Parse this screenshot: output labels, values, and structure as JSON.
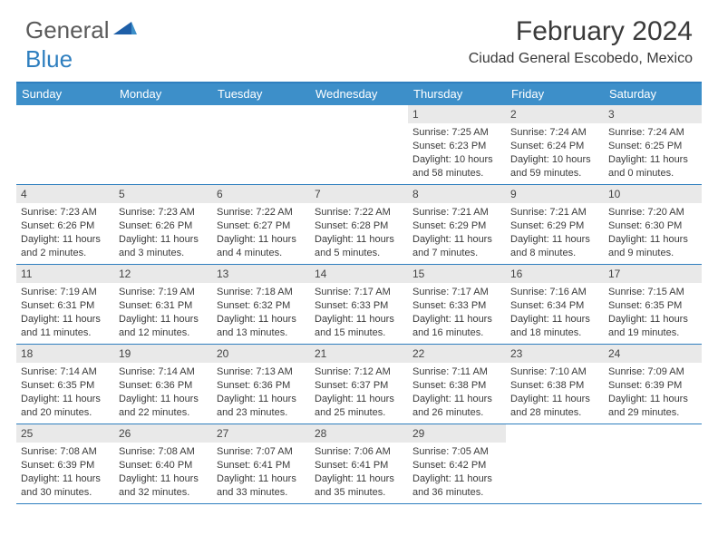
{
  "logo": {
    "text1": "General",
    "text2": "Blue"
  },
  "title": "February 2024",
  "location": "Ciudad General Escobedo, Mexico",
  "colors": {
    "header_bg": "#3d8fc9",
    "border": "#2f7fbf",
    "daynum_bg": "#e9e9e9",
    "text": "#3a3a3a"
  },
  "day_names": [
    "Sunday",
    "Monday",
    "Tuesday",
    "Wednesday",
    "Thursday",
    "Friday",
    "Saturday"
  ],
  "weeks": [
    [
      {
        "n": "",
        "sr": "",
        "ss": "",
        "dl": ""
      },
      {
        "n": "",
        "sr": "",
        "ss": "",
        "dl": ""
      },
      {
        "n": "",
        "sr": "",
        "ss": "",
        "dl": ""
      },
      {
        "n": "",
        "sr": "",
        "ss": "",
        "dl": ""
      },
      {
        "n": "1",
        "sr": "Sunrise: 7:25 AM",
        "ss": "Sunset: 6:23 PM",
        "dl": "Daylight: 10 hours and 58 minutes."
      },
      {
        "n": "2",
        "sr": "Sunrise: 7:24 AM",
        "ss": "Sunset: 6:24 PM",
        "dl": "Daylight: 10 hours and 59 minutes."
      },
      {
        "n": "3",
        "sr": "Sunrise: 7:24 AM",
        "ss": "Sunset: 6:25 PM",
        "dl": "Daylight: 11 hours and 0 minutes."
      }
    ],
    [
      {
        "n": "4",
        "sr": "Sunrise: 7:23 AM",
        "ss": "Sunset: 6:26 PM",
        "dl": "Daylight: 11 hours and 2 minutes."
      },
      {
        "n": "5",
        "sr": "Sunrise: 7:23 AM",
        "ss": "Sunset: 6:26 PM",
        "dl": "Daylight: 11 hours and 3 minutes."
      },
      {
        "n": "6",
        "sr": "Sunrise: 7:22 AM",
        "ss": "Sunset: 6:27 PM",
        "dl": "Daylight: 11 hours and 4 minutes."
      },
      {
        "n": "7",
        "sr": "Sunrise: 7:22 AM",
        "ss": "Sunset: 6:28 PM",
        "dl": "Daylight: 11 hours and 5 minutes."
      },
      {
        "n": "8",
        "sr": "Sunrise: 7:21 AM",
        "ss": "Sunset: 6:29 PM",
        "dl": "Daylight: 11 hours and 7 minutes."
      },
      {
        "n": "9",
        "sr": "Sunrise: 7:21 AM",
        "ss": "Sunset: 6:29 PM",
        "dl": "Daylight: 11 hours and 8 minutes."
      },
      {
        "n": "10",
        "sr": "Sunrise: 7:20 AM",
        "ss": "Sunset: 6:30 PM",
        "dl": "Daylight: 11 hours and 9 minutes."
      }
    ],
    [
      {
        "n": "11",
        "sr": "Sunrise: 7:19 AM",
        "ss": "Sunset: 6:31 PM",
        "dl": "Daylight: 11 hours and 11 minutes."
      },
      {
        "n": "12",
        "sr": "Sunrise: 7:19 AM",
        "ss": "Sunset: 6:31 PM",
        "dl": "Daylight: 11 hours and 12 minutes."
      },
      {
        "n": "13",
        "sr": "Sunrise: 7:18 AM",
        "ss": "Sunset: 6:32 PM",
        "dl": "Daylight: 11 hours and 13 minutes."
      },
      {
        "n": "14",
        "sr": "Sunrise: 7:17 AM",
        "ss": "Sunset: 6:33 PM",
        "dl": "Daylight: 11 hours and 15 minutes."
      },
      {
        "n": "15",
        "sr": "Sunrise: 7:17 AM",
        "ss": "Sunset: 6:33 PM",
        "dl": "Daylight: 11 hours and 16 minutes."
      },
      {
        "n": "16",
        "sr": "Sunrise: 7:16 AM",
        "ss": "Sunset: 6:34 PM",
        "dl": "Daylight: 11 hours and 18 minutes."
      },
      {
        "n": "17",
        "sr": "Sunrise: 7:15 AM",
        "ss": "Sunset: 6:35 PM",
        "dl": "Daylight: 11 hours and 19 minutes."
      }
    ],
    [
      {
        "n": "18",
        "sr": "Sunrise: 7:14 AM",
        "ss": "Sunset: 6:35 PM",
        "dl": "Daylight: 11 hours and 20 minutes."
      },
      {
        "n": "19",
        "sr": "Sunrise: 7:14 AM",
        "ss": "Sunset: 6:36 PM",
        "dl": "Daylight: 11 hours and 22 minutes."
      },
      {
        "n": "20",
        "sr": "Sunrise: 7:13 AM",
        "ss": "Sunset: 6:36 PM",
        "dl": "Daylight: 11 hours and 23 minutes."
      },
      {
        "n": "21",
        "sr": "Sunrise: 7:12 AM",
        "ss": "Sunset: 6:37 PM",
        "dl": "Daylight: 11 hours and 25 minutes."
      },
      {
        "n": "22",
        "sr": "Sunrise: 7:11 AM",
        "ss": "Sunset: 6:38 PM",
        "dl": "Daylight: 11 hours and 26 minutes."
      },
      {
        "n": "23",
        "sr": "Sunrise: 7:10 AM",
        "ss": "Sunset: 6:38 PM",
        "dl": "Daylight: 11 hours and 28 minutes."
      },
      {
        "n": "24",
        "sr": "Sunrise: 7:09 AM",
        "ss": "Sunset: 6:39 PM",
        "dl": "Daylight: 11 hours and 29 minutes."
      }
    ],
    [
      {
        "n": "25",
        "sr": "Sunrise: 7:08 AM",
        "ss": "Sunset: 6:39 PM",
        "dl": "Daylight: 11 hours and 30 minutes."
      },
      {
        "n": "26",
        "sr": "Sunrise: 7:08 AM",
        "ss": "Sunset: 6:40 PM",
        "dl": "Daylight: 11 hours and 32 minutes."
      },
      {
        "n": "27",
        "sr": "Sunrise: 7:07 AM",
        "ss": "Sunset: 6:41 PM",
        "dl": "Daylight: 11 hours and 33 minutes."
      },
      {
        "n": "28",
        "sr": "Sunrise: 7:06 AM",
        "ss": "Sunset: 6:41 PM",
        "dl": "Daylight: 11 hours and 35 minutes."
      },
      {
        "n": "29",
        "sr": "Sunrise: 7:05 AM",
        "ss": "Sunset: 6:42 PM",
        "dl": "Daylight: 11 hours and 36 minutes."
      },
      {
        "n": "",
        "sr": "",
        "ss": "",
        "dl": ""
      },
      {
        "n": "",
        "sr": "",
        "ss": "",
        "dl": ""
      }
    ]
  ]
}
